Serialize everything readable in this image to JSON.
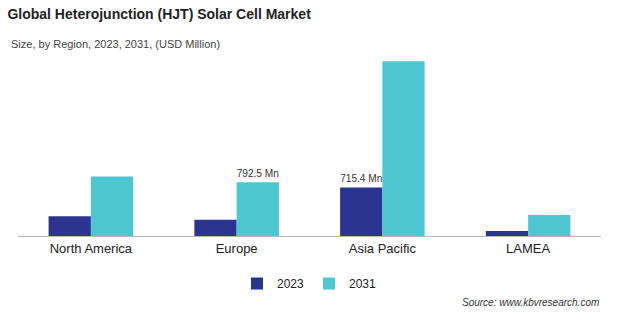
{
  "chart_data": {
    "type": "bar",
    "title": "Global Heterojunction (HJT) Solar Cell Market",
    "subtitle": "Size, by Region, 2023, 2031, (USD Million)",
    "source": "Source: www.kbvresearch.com",
    "categories": [
      "North America",
      "Europe",
      "Asia Pacific",
      "LAMEA"
    ],
    "series": [
      {
        "name": "2023",
        "color": "#2b3590",
        "values": [
          290,
          240,
          715.4,
          75
        ],
        "value_labels": [
          null,
          null,
          "715.4 Mn",
          null
        ]
      },
      {
        "name": "2031",
        "color": "#4dc6d0",
        "values": [
          880,
          792.5,
          2580,
          310
        ],
        "value_labels": [
          null,
          "792.5 Mn",
          null,
          null
        ]
      }
    ],
    "ylim": [
      0,
      2600
    ],
    "tick_labels": "x",
    "grid": false,
    "legend": "bottom"
  }
}
